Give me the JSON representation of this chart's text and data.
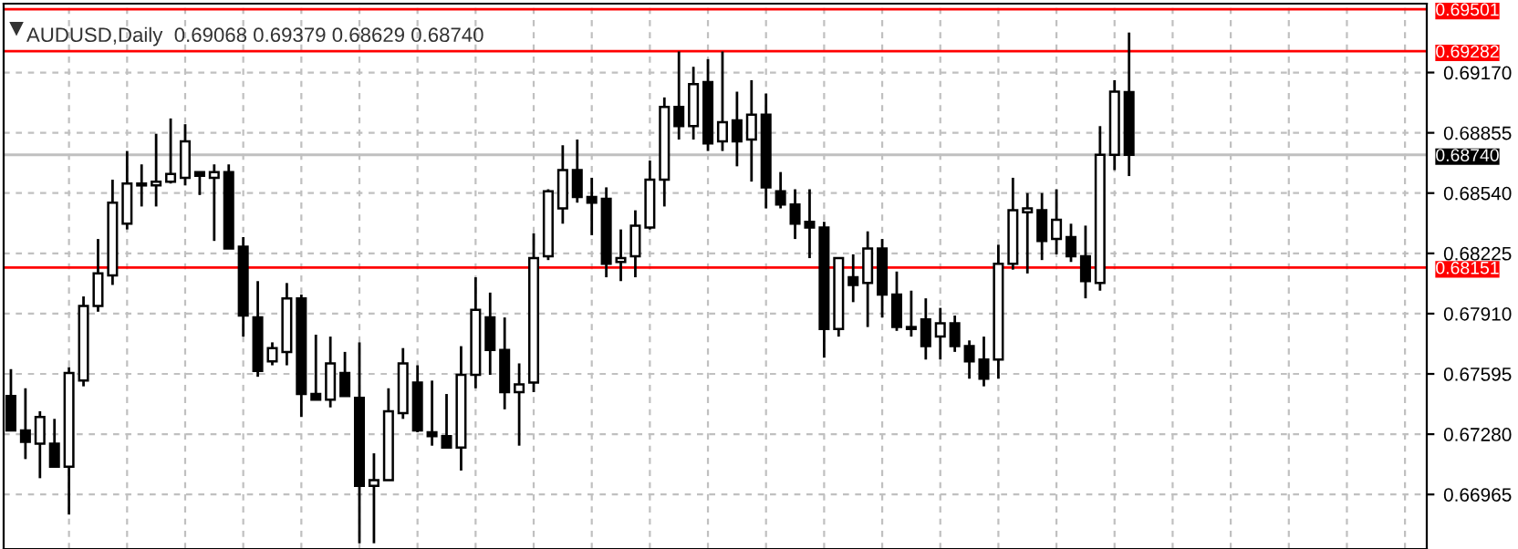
{
  "chart_data": {
    "type": "candlestick",
    "title": "AUDUSD,Daily  0.69068 0.69379 0.68629 0.68740",
    "categories": [
      null,
      null,
      null,
      null,
      null,
      null,
      null,
      null,
      null,
      null,
      null,
      null,
      null,
      null,
      null,
      null,
      null,
      null,
      null,
      null,
      null,
      null,
      null,
      null,
      null,
      null,
      null,
      null,
      null,
      null,
      null,
      null,
      null,
      null,
      null,
      null,
      null,
      null,
      null,
      null,
      null,
      null,
      null,
      null,
      null,
      null,
      null,
      null,
      null,
      null,
      null,
      null,
      null,
      null,
      null,
      null,
      null,
      null,
      null,
      null,
      null,
      null,
      null,
      null,
      null,
      null,
      null,
      null,
      null,
      null,
      null,
      null,
      null,
      null,
      null,
      null,
      null,
      null,
      null,
      null,
      null,
      null,
      null,
      null,
      null,
      null,
      null,
      null,
      null,
      null,
      null,
      null,
      null,
      null,
      null,
      null,
      null,
      null
    ],
    "ohlc": [
      [
        0.6748,
        0.6762,
        0.673,
        0.673
      ],
      [
        0.673,
        0.6752,
        0.6715,
        0.6724
      ],
      [
        0.6723,
        0.674,
        0.6705,
        0.6737
      ],
      [
        0.6723,
        0.6736,
        0.6711,
        0.6711
      ],
      [
        0.6711,
        0.6763,
        0.6686,
        0.676
      ],
      [
        0.6756,
        0.68,
        0.6753,
        0.6795
      ],
      [
        0.6795,
        0.683,
        0.6792,
        0.6812
      ],
      [
        0.6811,
        0.6861,
        0.6806,
        0.6849
      ],
      [
        0.6838,
        0.6876,
        0.6835,
        0.6859
      ],
      [
        0.6858,
        0.6869,
        0.6847,
        0.6859
      ],
      [
        0.6858,
        0.6885,
        0.6847,
        0.686
      ],
      [
        0.686,
        0.6893,
        0.6859,
        0.6864
      ],
      [
        0.6862,
        0.689,
        0.6858,
        0.6881
      ],
      [
        0.6865,
        0.6865,
        0.6853,
        0.6863
      ],
      [
        0.6862,
        0.6869,
        0.6829,
        0.6865
      ],
      [
        0.6865,
        0.6869,
        0.6825,
        0.6825
      ],
      [
        0.6826,
        0.6831,
        0.6779,
        0.679
      ],
      [
        0.6789,
        0.6808,
        0.6758,
        0.6761
      ],
      [
        0.6766,
        0.6776,
        0.6764,
        0.6773
      ],
      [
        0.6771,
        0.6807,
        0.6764,
        0.6799
      ],
      [
        0.6799,
        0.6801,
        0.6737,
        0.6749
      ],
      [
        0.6749,
        0.678,
        0.6746,
        0.6746
      ],
      [
        0.6746,
        0.6779,
        0.6742,
        0.6765
      ],
      [
        0.676,
        0.6771,
        0.6748,
        0.6748
      ],
      [
        0.6747,
        0.6776,
        0.6671,
        0.6701
      ],
      [
        0.6701,
        0.6718,
        0.6671,
        0.6704
      ],
      [
        0.6704,
        0.6752,
        0.6704,
        0.674
      ],
      [
        0.6739,
        0.6773,
        0.6736,
        0.6765
      ],
      [
        0.6755,
        0.6764,
        0.6729,
        0.673
      ],
      [
        0.6729,
        0.6756,
        0.6722,
        0.6727
      ],
      [
        0.6727,
        0.6749,
        0.6721,
        0.6721
      ],
      [
        0.6721,
        0.6774,
        0.6709,
        0.6759
      ],
      [
        0.6759,
        0.681,
        0.6752,
        0.6793
      ],
      [
        0.6789,
        0.6802,
        0.6759,
        0.6772
      ],
      [
        0.6772,
        0.6789,
        0.6741,
        0.675
      ],
      [
        0.675,
        0.6765,
        0.6722,
        0.6754
      ],
      [
        0.6755,
        0.6833,
        0.675,
        0.682
      ],
      [
        0.6821,
        0.6856,
        0.6819,
        0.6855
      ],
      [
        0.6846,
        0.6879,
        0.6838,
        0.6866
      ],
      [
        0.6866,
        0.6882,
        0.6849,
        0.6852
      ],
      [
        0.6852,
        0.6862,
        0.6832,
        0.6849
      ],
      [
        0.6851,
        0.6857,
        0.681,
        0.6817
      ],
      [
        0.6818,
        0.6835,
        0.6808,
        0.682
      ],
      [
        0.6821,
        0.6845,
        0.681,
        0.6837
      ],
      [
        0.6836,
        0.6871,
        0.6835,
        0.6861
      ],
      [
        0.6861,
        0.6904,
        0.6847,
        0.6899
      ],
      [
        0.6899,
        0.6928,
        0.6882,
        0.6889
      ],
      [
        0.6889,
        0.692,
        0.6882,
        0.6911
      ],
      [
        0.6912,
        0.6924,
        0.6876,
        0.688
      ],
      [
        0.6881,
        0.6928,
        0.6876,
        0.6891
      ],
      [
        0.6892,
        0.6907,
        0.6868,
        0.6881
      ],
      [
        0.6882,
        0.6913,
        0.686,
        0.6895
      ],
      [
        0.6895,
        0.6906,
        0.6846,
        0.6857
      ],
      [
        0.6855,
        0.6865,
        0.6846,
        0.6848
      ],
      [
        0.6848,
        0.6856,
        0.683,
        0.6838
      ],
      [
        0.6839,
        0.6856,
        0.682,
        0.6836
      ],
      [
        0.6836,
        0.6839,
        0.6768,
        0.6783
      ],
      [
        0.6783,
        0.682,
        0.6779,
        0.682
      ],
      [
        0.681,
        0.6822,
        0.6797,
        0.6806
      ],
      [
        0.6807,
        0.6834,
        0.6784,
        0.6825
      ],
      [
        0.6825,
        0.683,
        0.6789,
        0.6801
      ],
      [
        0.6801,
        0.6813,
        0.6782,
        0.6784
      ],
      [
        0.6783,
        0.6803,
        0.6779,
        0.6784
      ],
      [
        0.6788,
        0.6799,
        0.6767,
        0.6774
      ],
      [
        0.6779,
        0.6794,
        0.6767,
        0.6786
      ],
      [
        0.6786,
        0.679,
        0.6771,
        0.6774
      ],
      [
        0.6774,
        0.6777,
        0.6757,
        0.6766
      ],
      [
        0.6767,
        0.6779,
        0.6753,
        0.6757
      ],
      [
        0.6767,
        0.6827,
        0.6757,
        0.6817
      ],
      [
        0.6817,
        0.6862,
        0.6814,
        0.6845
      ],
      [
        0.6844,
        0.6854,
        0.6812,
        0.6846
      ],
      [
        0.6845,
        0.6854,
        0.6819,
        0.6829
      ],
      [
        0.683,
        0.6856,
        0.6822,
        0.684
      ],
      [
        0.6831,
        0.6838,
        0.6818,
        0.6821
      ],
      [
        0.6821,
        0.6837,
        0.6799,
        0.6808
      ],
      [
        0.6807,
        0.6889,
        0.6803,
        0.6874
      ],
      [
        0.6874,
        0.6913,
        0.6866,
        0.6907
      ],
      [
        0.69068,
        0.69379,
        0.68629,
        0.6874
      ],
      null,
      null,
      null,
      null,
      null,
      null,
      null,
      null,
      null,
      null,
      null,
      null,
      null,
      null,
      null,
      null,
      null,
      null,
      null,
      null
    ],
    "ylim": [
      0.6668,
      0.6953
    ],
    "yticks": [
      {
        "value": 0.6917,
        "label": "0.69170"
      },
      {
        "value": 0.68855,
        "label": "0.68855"
      },
      {
        "value": 0.6854,
        "label": "0.68540"
      },
      {
        "value": 0.68225,
        "label": "0.68225"
      },
      {
        "value": 0.6791,
        "label": "0.67910"
      },
      {
        "value": 0.67595,
        "label": "0.67595"
      },
      {
        "value": 0.6728,
        "label": "0.67280"
      },
      {
        "value": 0.66965,
        "label": "0.66965"
      }
    ],
    "ref_lines": [
      {
        "axis": "y",
        "value": 0.69501,
        "label": "0.69501",
        "color": "#ff0000"
      },
      {
        "axis": "y",
        "value": 0.69282,
        "label": "0.69282",
        "color": "#ff0000"
      },
      {
        "axis": "y",
        "value": 0.6874,
        "label": "0.68740",
        "color": "#c0c0c0"
      },
      {
        "axis": "y",
        "value": 0.68151,
        "label": "0.68151",
        "color": "#ff0000"
      }
    ],
    "grid": true,
    "tick_labels": "y"
  }
}
